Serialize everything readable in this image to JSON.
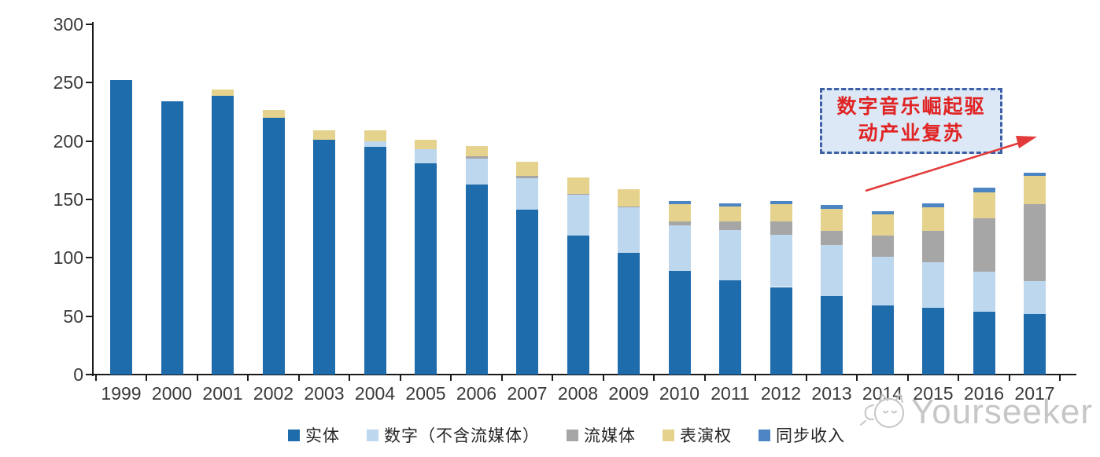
{
  "chart_data": {
    "type": "bar",
    "stacked": true,
    "title": "",
    "xlabel": "",
    "ylabel": "",
    "categories": [
      "1999",
      "2000",
      "2001",
      "2002",
      "2003",
      "2004",
      "2005",
      "2006",
      "2007",
      "2008",
      "2009",
      "2010",
      "2011",
      "2012",
      "2013",
      "2014",
      "2015",
      "2016",
      "2017"
    ],
    "series": [
      {
        "name": "实体",
        "color": "#1f6cad",
        "values": [
          252,
          234,
          239,
          220,
          201,
          195,
          181,
          163,
          141,
          119,
          104,
          89,
          81,
          75,
          67,
          59,
          57,
          54,
          52
        ]
      },
      {
        "name": "数字（不含流媒体）",
        "color": "#bdd7ee",
        "values": [
          0,
          0,
          0,
          0,
          0,
          5,
          12,
          22,
          27,
          35,
          39,
          39,
          43,
          45,
          44,
          42,
          39,
          34,
          28
        ]
      },
      {
        "name": "流媒体",
        "color": "#a6a6a6",
        "values": [
          0,
          0,
          0,
          0,
          0,
          0,
          0,
          2,
          2,
          1,
          1,
          3,
          7,
          11,
          12,
          18,
          27,
          46,
          66
        ]
      },
      {
        "name": "表演权",
        "color": "#e5d38d",
        "values": [
          0,
          0,
          5,
          7,
          8,
          9,
          8,
          9,
          12,
          14,
          15,
          15,
          13,
          15,
          19,
          18,
          20,
          22,
          24
        ]
      },
      {
        "name": "同步收入",
        "color": "#4d85c3",
        "values": [
          0,
          0,
          0,
          0,
          0,
          0,
          0,
          0,
          0,
          0,
          0,
          3,
          3,
          3,
          3,
          3,
          4,
          4,
          3
        ]
      }
    ],
    "totals": [
      252,
      234,
      244,
      227,
      209,
      209,
      201,
      196,
      182,
      169,
      159,
      149,
      147,
      149,
      145,
      140,
      147,
      160,
      173
    ],
    "ylim": [
      0,
      300
    ],
    "yticks": [
      "0",
      "50",
      "100",
      "150",
      "200",
      "250",
      "300"
    ],
    "grid": false,
    "legend_position": "bottom"
  },
  "annotation": {
    "line1": "数字音乐崛起驱",
    "line2": "动产业复苏",
    "text_color": "#e02424",
    "box_fill": "#dce8f6",
    "box_border": "#3d5fa6",
    "arrow_color": "#e23a3a"
  },
  "watermark": {
    "text": "Yourseeker",
    "color": "#c6c6c6"
  }
}
